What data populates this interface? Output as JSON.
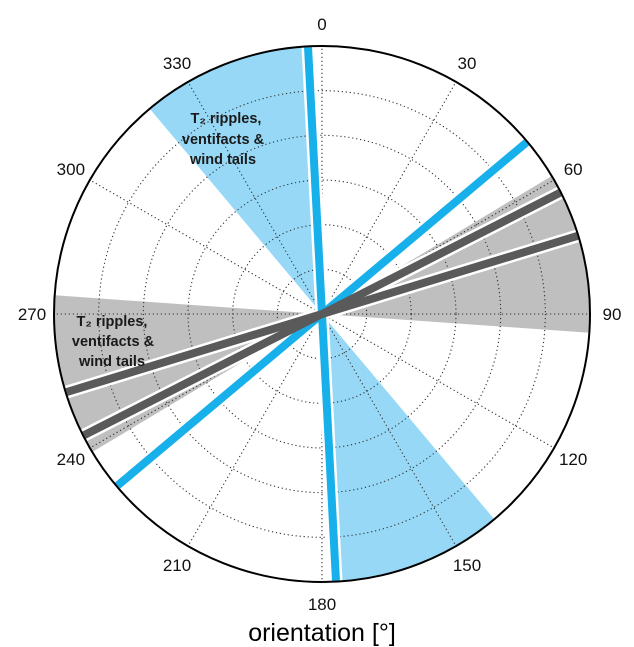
{
  "chart_data": {
    "type": "polar",
    "angular_unit": "degrees",
    "direction": "clockwise",
    "zero_location": "top",
    "angular_ticks": [
      "0",
      "30",
      "60",
      "90",
      "120",
      "150",
      "180",
      "210",
      "240",
      "270",
      "300",
      "330"
    ],
    "grid": true,
    "xlabel": "orientation [°]",
    "sectors": [
      {
        "name": "blue-sector",
        "color": "#96d8f6",
        "start_deg": 320,
        "end_deg": 358
      },
      {
        "name": "gray-sector",
        "color": "#bfbfbf",
        "start_deg": 59,
        "end_deg": 94
      }
    ],
    "lines": [
      {
        "name": "blue-line-1",
        "color": "#17b0ea",
        "angle_deg": 357
      },
      {
        "name": "blue-line-2",
        "color": "#17b0ea",
        "angle_deg": 50
      },
      {
        "name": "gray-line-1",
        "color": "#5a5a5a",
        "angle_deg": 63
      },
      {
        "name": "gray-line-2",
        "color": "#5a5a5a",
        "angle_deg": 73
      }
    ],
    "annotations": [
      {
        "name": "annotation-blue",
        "lines": [
          "T₂ ripples,",
          "ventifacts &",
          "wind tails"
        ]
      },
      {
        "name": "annotation-gray",
        "lines": [
          "T₂ ripples,",
          "ventifacts &",
          "wind tails"
        ]
      }
    ]
  }
}
